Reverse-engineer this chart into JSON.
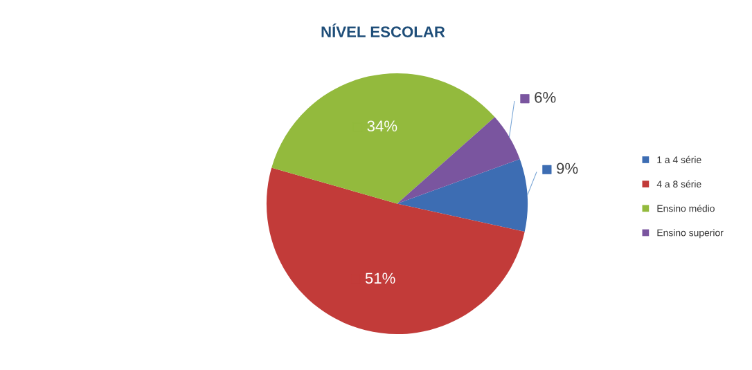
{
  "chart_data": {
    "type": "pie",
    "title": "NÍVEL ESCOLAR",
    "categories": [
      "1 a 4 série",
      "4 a 8 série",
      "Ensino médio",
      "Ensino superior"
    ],
    "values": [
      9,
      51,
      34,
      6
    ],
    "colors": [
      "#3d6db3",
      "#c23b39",
      "#93ba3d",
      "#7a559f"
    ],
    "value_labels": [
      "9%",
      "51%",
      "34%",
      "6%"
    ],
    "legend": "right"
  }
}
